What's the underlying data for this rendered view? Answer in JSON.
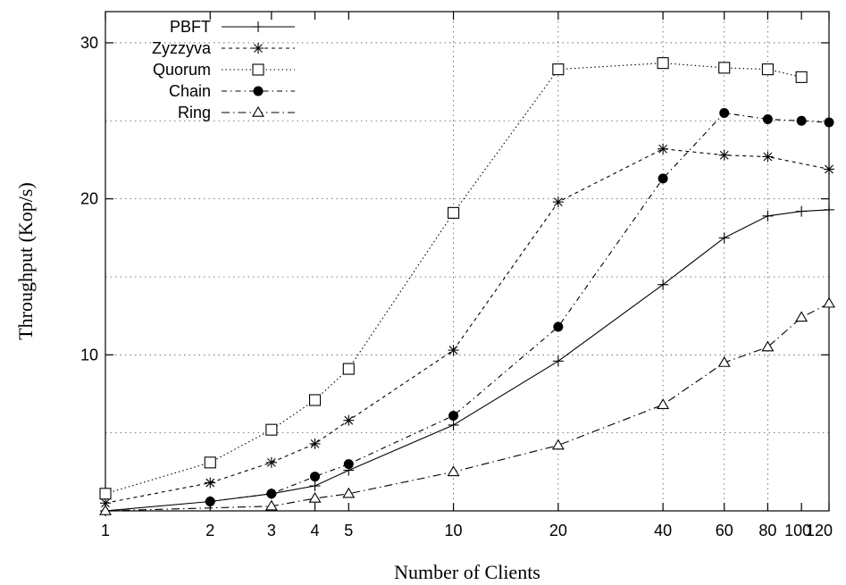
{
  "chart_data": {
    "type": "line",
    "title": "",
    "xlabel": "Number of Clients",
    "ylabel": "Throughput (Kop/s)",
    "x_scale": "log",
    "xlim": [
      1,
      120
    ],
    "ylim": [
      0,
      32
    ],
    "x_ticks": [
      1,
      2,
      3,
      4,
      5,
      10,
      20,
      40,
      60,
      80,
      100,
      120
    ],
    "x_tick_labels": [
      "1",
      "2",
      "3",
      "4",
      "5",
      "10",
      "20",
      "40",
      "60",
      "80",
      "100",
      "120"
    ],
    "y_ticks": [
      10,
      20,
      30
    ],
    "y_tick_labels": [
      "10",
      "20",
      "30"
    ],
    "grid": "dotted, major y and x",
    "legend_position": "top-left",
    "series": [
      {
        "name": "PBFT",
        "marker": "plus",
        "dash": "solid",
        "x": [
          1,
          2,
          3,
          4,
          5,
          10,
          20,
          40,
          60,
          80,
          100,
          120
        ],
        "y": [
          0.0,
          0.6,
          1.1,
          1.6,
          2.6,
          5.5,
          9.6,
          14.5,
          17.5,
          18.9,
          19.2,
          19.3
        ]
      },
      {
        "name": "Zyzzyva",
        "marker": "asterisk",
        "dash": "dashed",
        "x": [
          1,
          2,
          3,
          4,
          5,
          10,
          20,
          40,
          60,
          80,
          120
        ],
        "y": [
          0.5,
          1.8,
          3.1,
          4.3,
          5.8,
          10.3,
          19.8,
          23.2,
          22.8,
          22.7,
          21.9
        ]
      },
      {
        "name": "Quorum",
        "marker": "square",
        "dash": "dotted",
        "x": [
          1,
          2,
          3,
          4,
          5,
          10,
          20,
          40,
          60,
          80,
          100
        ],
        "y": [
          1.1,
          3.1,
          5.2,
          7.1,
          9.1,
          19.1,
          28.3,
          28.7,
          28.4,
          28.3,
          27.8
        ]
      },
      {
        "name": "Chain",
        "marker": "filled-circle",
        "dash": "dash-dot",
        "x": [
          2,
          3,
          4,
          5,
          10,
          20,
          40,
          60,
          80,
          100,
          120
        ],
        "y": [
          0.6,
          1.1,
          2.2,
          3.0,
          6.1,
          11.8,
          21.3,
          25.5,
          25.1,
          25.0,
          24.9
        ]
      },
      {
        "name": "Ring",
        "marker": "triangle",
        "dash": "dash-dot-long",
        "x": [
          1,
          3,
          4,
          5,
          10,
          20,
          40,
          60,
          80,
          100,
          120
        ],
        "y": [
          0.0,
          0.3,
          0.8,
          1.1,
          2.5,
          4.2,
          6.8,
          9.5,
          10.5,
          12.4,
          13.3
        ]
      }
    ]
  },
  "colors": {
    "line": "#000000",
    "grid": "#555555",
    "background": "#ffffff"
  }
}
